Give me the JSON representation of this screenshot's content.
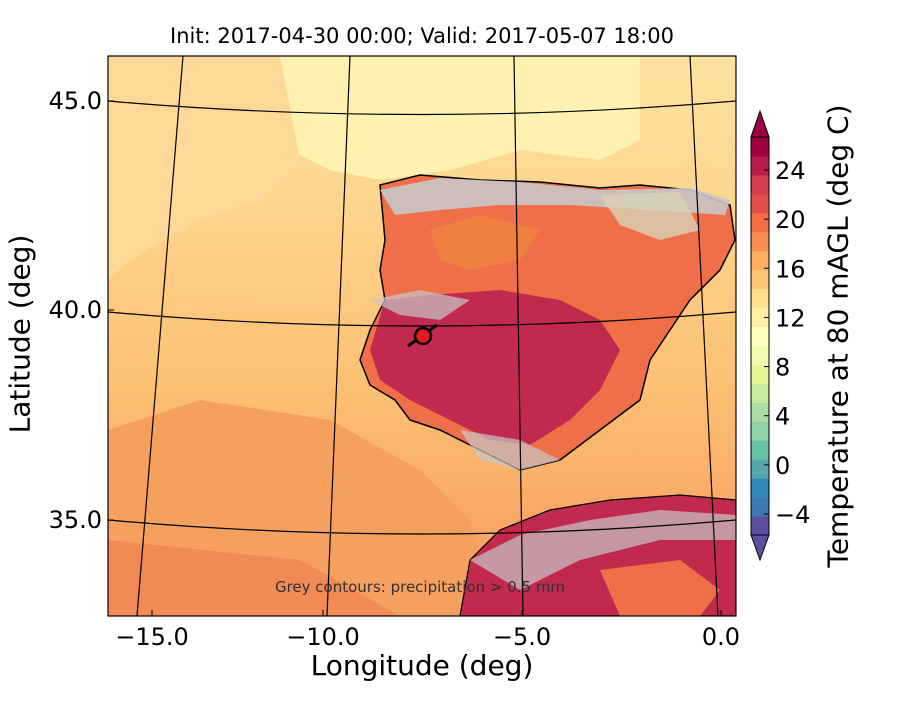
{
  "title": "Init: 2017-04-30 00:00; Valid: 2017-05-07 18:00",
  "xlabel": "Longitude (deg)",
  "ylabel": "Latitude (deg)",
  "colorbar": {
    "label": "Temperature at 80 mAGL (deg C)",
    "ticks": [
      "−4",
      "0",
      "4",
      "8",
      "12",
      "16",
      "20",
      "24"
    ],
    "colors": [
      "#5e4fa2",
      "#3f79b5",
      "#3288bd",
      "#55a6b1",
      "#66c2a5",
      "#8ed1a4",
      "#abdda4",
      "#c9e99e",
      "#e6f598",
      "#f4faad",
      "#ffffbf",
      "#fff0a6",
      "#fee08b",
      "#fdc676",
      "#fdae61",
      "#f88f52",
      "#f46d43",
      "#e34f4a",
      "#d53e4f",
      "#b81c4b",
      "#9e0142"
    ]
  },
  "xticks": [
    "−15.0",
    "−10.0",
    "−5.0",
    "0.0"
  ],
  "yticks": [
    "45.0",
    "40.0",
    "35.0"
  ],
  "annotation": "Grey contours: precipitation > 0.5 mm",
  "colors": {
    "ocean_north": "#fde6a3",
    "ocean_mid": "#fdce85",
    "ocean_south": "#f79f62",
    "land_hot": "#c12a4d",
    "land_warm": "#ef6a4a",
    "precip_grey": "#c8c8c8",
    "marker": "#e41a1c"
  }
}
